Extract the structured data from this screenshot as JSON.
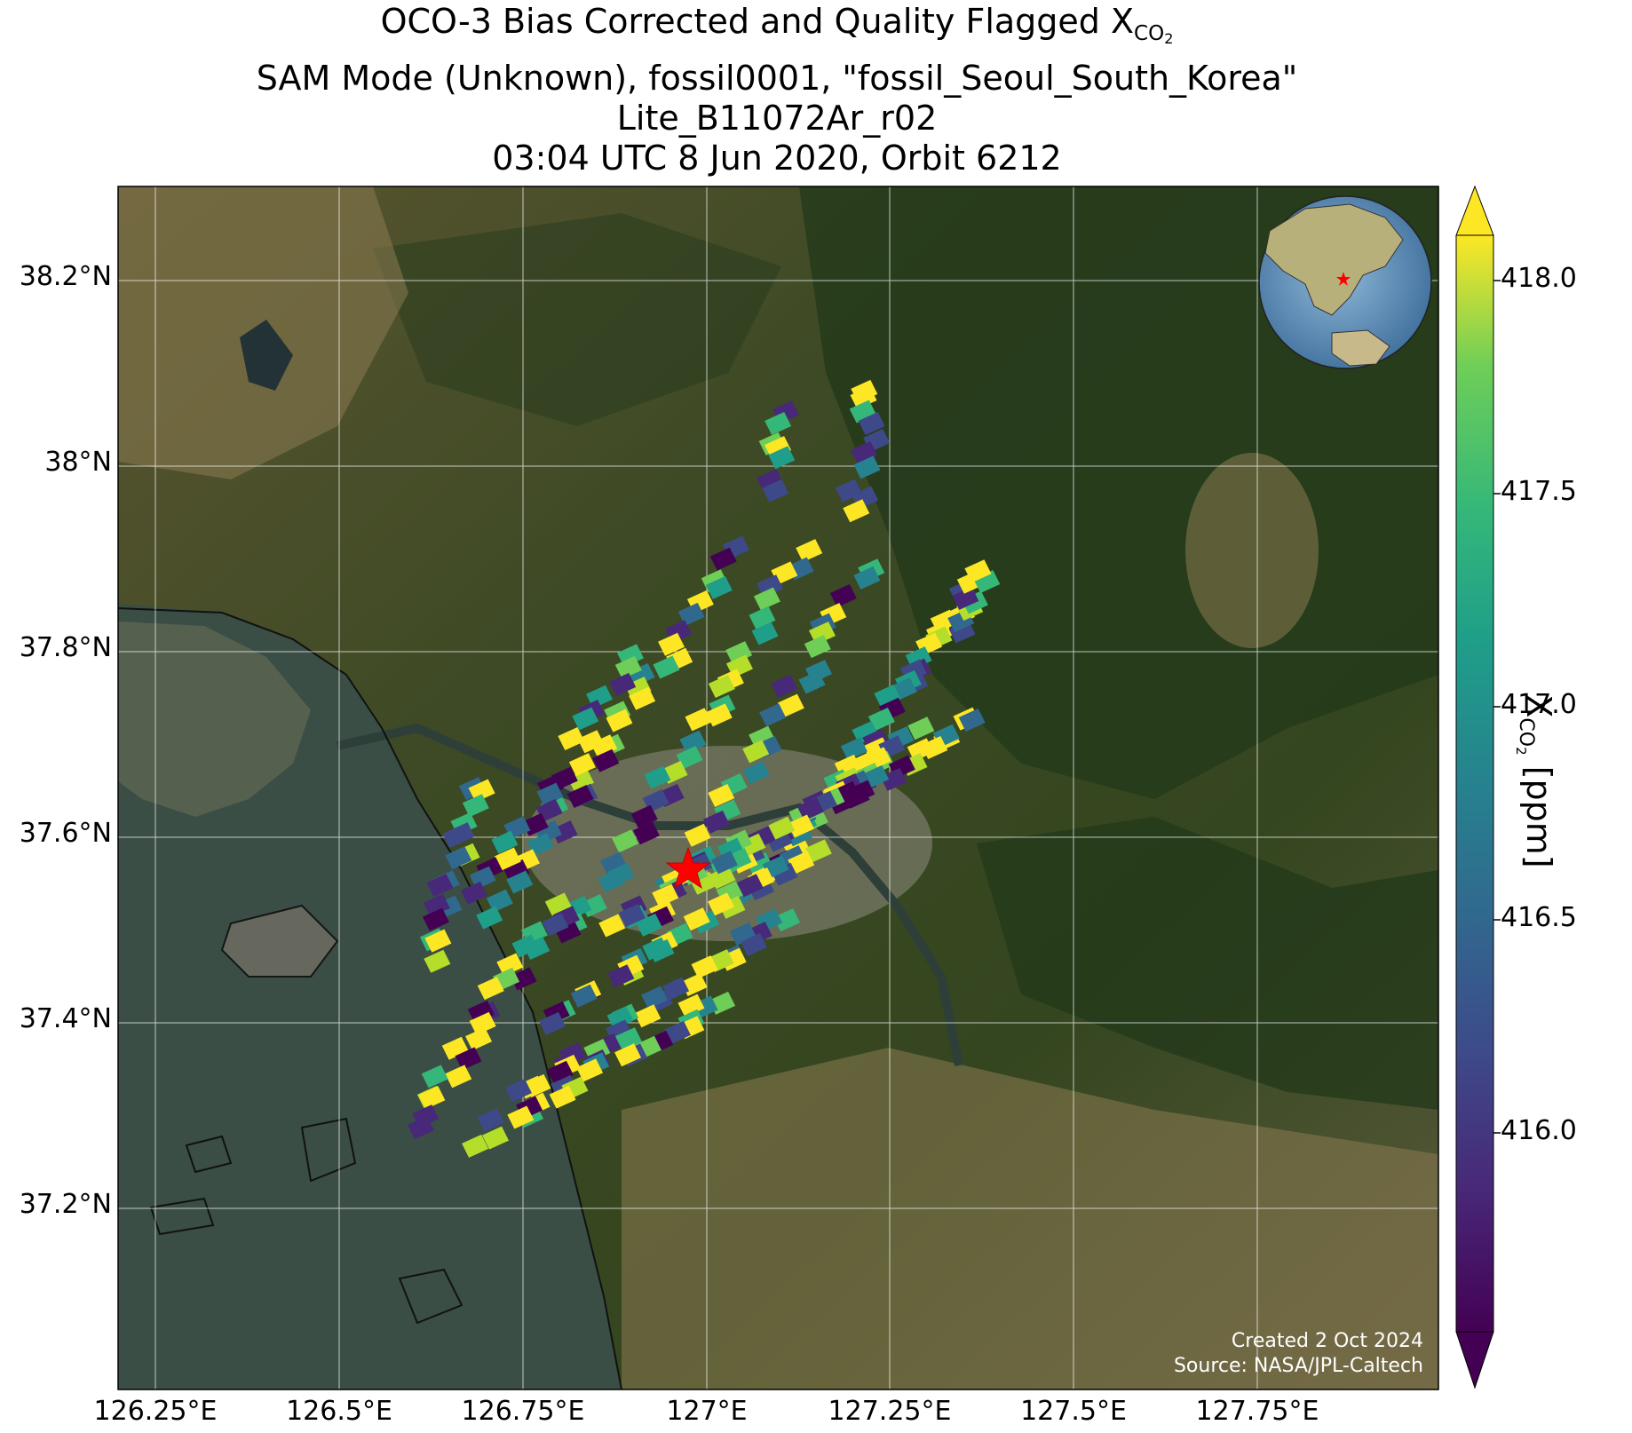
{
  "title": {
    "line1_prefix": "OCO-3 Bias Corrected and Quality Flagged X",
    "line1_subscript": "CO",
    "line1_subsub": "2",
    "line2": "SAM Mode (Unknown), fossil0001, \"fossil_Seoul_South_Korea\"",
    "line3": "Lite_B11072Ar_r02",
    "line4": "03:04 UTC 8 Jun 2020, Orbit 6212"
  },
  "axes": {
    "lon_ticks": [
      "126.25°E",
      "126.5°E",
      "126.75°E",
      "127°E",
      "127.25°E",
      "127.5°E",
      "127.75°E"
    ],
    "lat_ticks": [
      "38.2°N",
      "38°N",
      "37.8°N",
      "37.6°N",
      "37.4°N",
      "37.2°N"
    ]
  },
  "colorbar": {
    "label_prefix": "X",
    "label_sub": "CO",
    "label_subsub": "2",
    "label_suffix": " [ppm]",
    "ticks": [
      "418.0",
      "417.5",
      "417.0",
      "416.5",
      "416.0"
    ],
    "colormap": "viridis",
    "range": [
      415.6,
      418.1
    ],
    "extend": "both"
  },
  "credit": {
    "line1": "Created 2 Oct 2024",
    "line2": "Source: NASA/JPL-Caltech"
  },
  "map": {
    "background": "satellite imagery",
    "target_marker": "red star",
    "lon_range": [
      126.2,
      127.99
    ],
    "lat_range": [
      37.0,
      38.3
    ]
  },
  "colors": {
    "star": "#ff0000",
    "grid": "#ffffff",
    "viridis_low": "#440154",
    "viridis_high": "#fde725"
  }
}
